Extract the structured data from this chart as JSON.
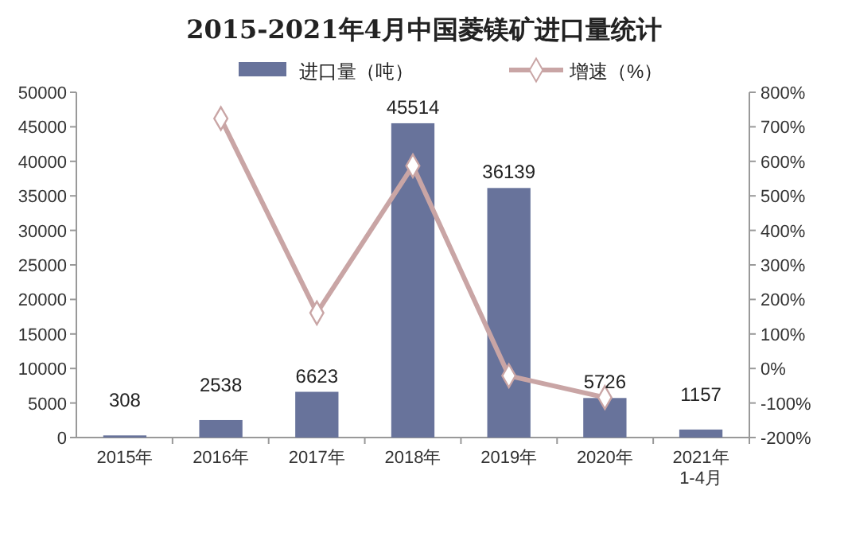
{
  "chart_data": {
    "type": "bar",
    "title": "2015-2021年4月中国菱镁矿进口量统计",
    "categories": [
      "2015年",
      "2016年",
      "2017年",
      "2018年",
      "2019年",
      "2020年",
      "2021年\n1-4月"
    ],
    "series": [
      {
        "name": "进口量（吨）",
        "color": "#68739b",
        "values": [
          308,
          2538,
          6623,
          45514,
          36139,
          5726,
          1157
        ],
        "value_labels": [
          "308",
          "2538",
          "6623",
          "45514",
          "36139",
          "5726",
          "1157"
        ]
      },
      {
        "name": "增速（%）",
        "type": "line",
        "axis": "y2",
        "color": "#c9a5a5",
        "marker": "diamond",
        "values": [
          null,
          724,
          161,
          587,
          -21,
          -84,
          null
        ]
      }
    ],
    "ylim": [
      0,
      50000
    ],
    "yticks": [
      0,
      5000,
      10000,
      15000,
      20000,
      25000,
      30000,
      35000,
      40000,
      45000,
      50000
    ],
    "y2lim": [
      -200,
      800
    ],
    "y2ticks": [
      {
        "value": -200,
        "label": "-200%"
      },
      {
        "value": -100,
        "label": "-100%"
      },
      {
        "value": 0,
        "label": "0%"
      },
      {
        "value": 100,
        "label": "100%"
      },
      {
        "value": 200,
        "label": "200%"
      },
      {
        "value": 300,
        "label": "300%"
      },
      {
        "value": 400,
        "label": "400%"
      },
      {
        "value": 500,
        "label": "500%"
      },
      {
        "value": 600,
        "label": "600%"
      },
      {
        "value": 700,
        "label": "700%"
      },
      {
        "value": 800,
        "label": "800%"
      }
    ],
    "legend": "top"
  }
}
